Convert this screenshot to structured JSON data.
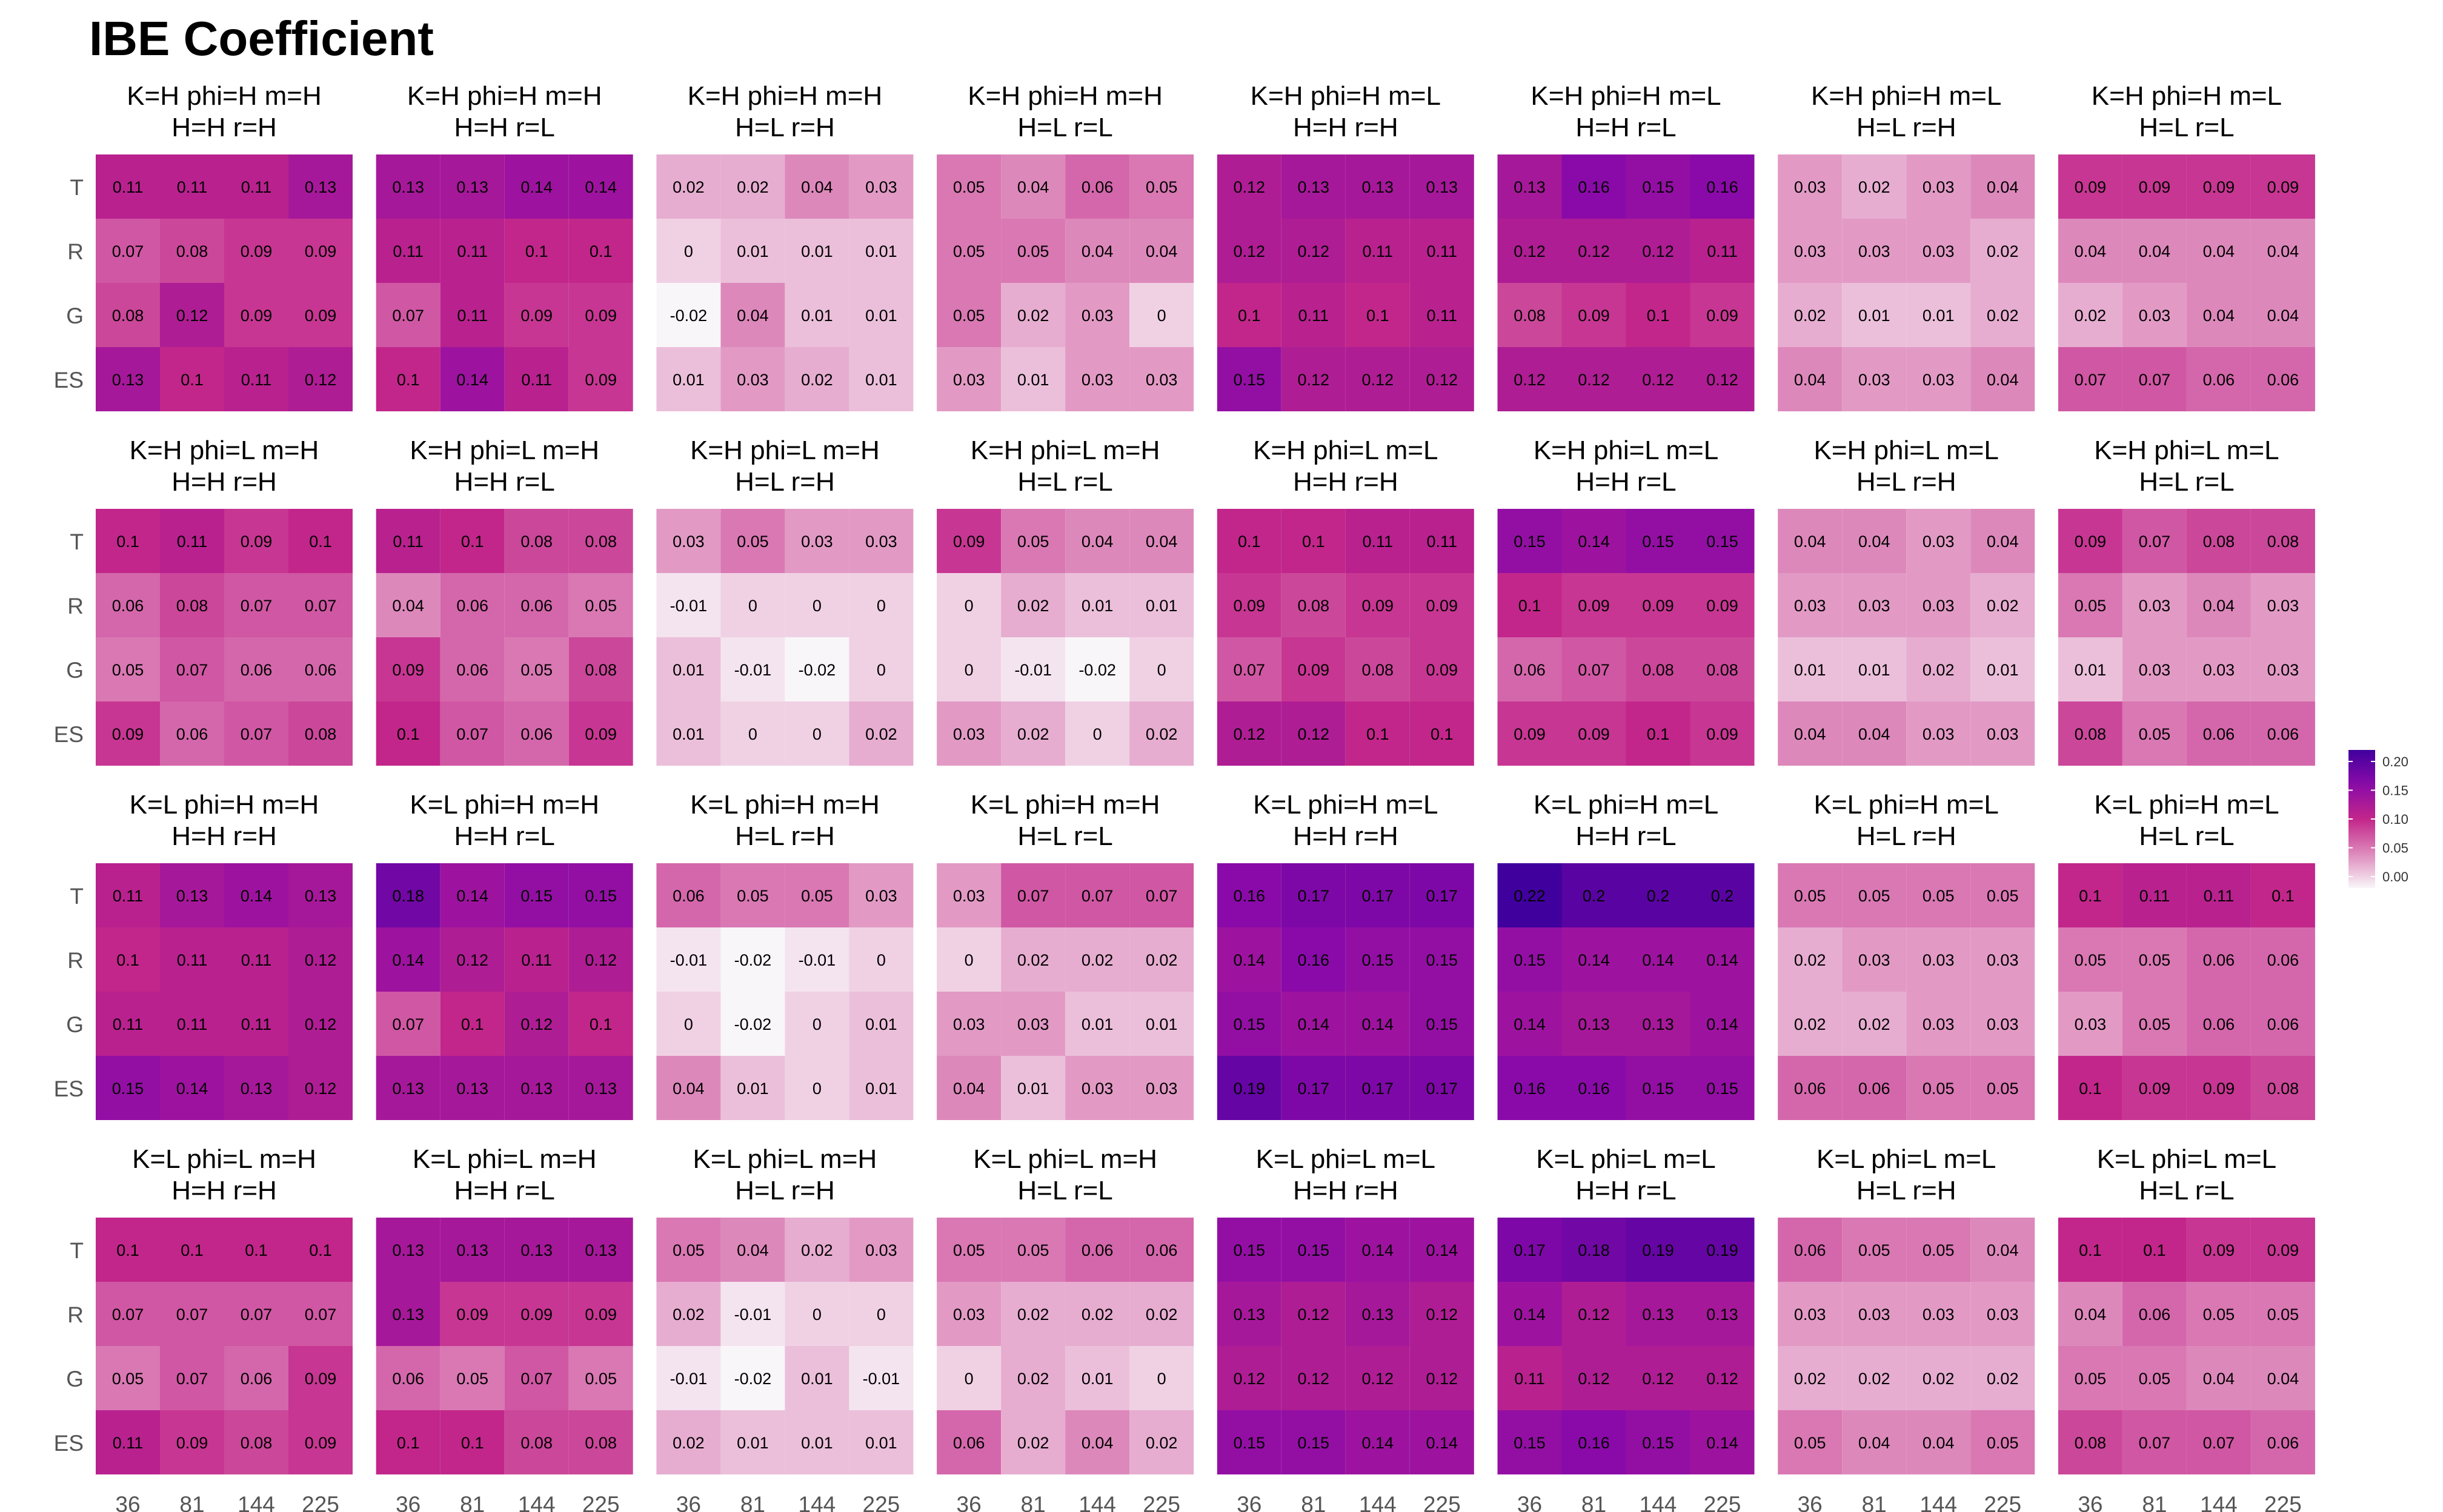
{
  "chart_data": {
    "type": "heatmap",
    "title": "IBE Coefficient",
    "x_categories": [
      "36",
      "81",
      "144",
      "225"
    ],
    "y_categories": [
      "T",
      "R",
      "G",
      "ES"
    ],
    "color_scale": {
      "colors": [
        "#f9f6f9",
        "#dd88bb",
        "#c2268a",
        "#8a0aa9",
        "#40009e"
      ],
      "ticks": [
        "0.20",
        "0.15",
        "0.10",
        "0.05",
        "0.00"
      ],
      "tick_values": [
        0.2,
        0.15,
        0.1,
        0.05,
        0.0
      ],
      "domain": [
        -0.02,
        0.22
      ]
    },
    "panels": [
      {
        "title1": "K=H phi=H m=H",
        "title2": "H=H r=H",
        "values": [
          [
            "0.11",
            "0.11",
            "0.11",
            "0.13"
          ],
          [
            "0.07",
            "0.08",
            "0.09",
            "0.09"
          ],
          [
            "0.08",
            "0.12",
            "0.09",
            "0.09"
          ],
          [
            "0.13",
            "0.1",
            "0.11",
            "0.12"
          ]
        ]
      },
      {
        "title1": "K=H phi=H m=H",
        "title2": "H=H r=L",
        "values": [
          [
            "0.13",
            "0.13",
            "0.14",
            "0.14"
          ],
          [
            "0.11",
            "0.11",
            "0.1",
            "0.1"
          ],
          [
            "0.07",
            "0.11",
            "0.09",
            "0.09"
          ],
          [
            "0.1",
            "0.14",
            "0.11",
            "0.09"
          ]
        ]
      },
      {
        "title1": "K=H phi=H m=H",
        "title2": "H=L r=H",
        "values": [
          [
            "0.02",
            "0.02",
            "0.04",
            "0.03"
          ],
          [
            "0",
            "0.01",
            "0.01",
            "0.01"
          ],
          [
            "-0.02",
            "0.04",
            "0.01",
            "0.01"
          ],
          [
            "0.01",
            "0.03",
            "0.02",
            "0.01"
          ]
        ]
      },
      {
        "title1": "K=H phi=H m=H",
        "title2": "H=L r=L",
        "values": [
          [
            "0.05",
            "0.04",
            "0.06",
            "0.05"
          ],
          [
            "0.05",
            "0.05",
            "0.04",
            "0.04"
          ],
          [
            "0.05",
            "0.02",
            "0.03",
            "0"
          ],
          [
            "0.03",
            "0.01",
            "0.03",
            "0.03"
          ]
        ]
      },
      {
        "title1": "K=H phi=H m=L",
        "title2": "H=H r=H",
        "values": [
          [
            "0.12",
            "0.13",
            "0.13",
            "0.13"
          ],
          [
            "0.12",
            "0.12",
            "0.11",
            "0.11"
          ],
          [
            "0.1",
            "0.11",
            "0.1",
            "0.11"
          ],
          [
            "0.15",
            "0.12",
            "0.12",
            "0.12"
          ]
        ]
      },
      {
        "title1": "K=H phi=H m=L",
        "title2": "H=H r=L",
        "values": [
          [
            "0.13",
            "0.16",
            "0.15",
            "0.16"
          ],
          [
            "0.12",
            "0.12",
            "0.12",
            "0.11"
          ],
          [
            "0.08",
            "0.09",
            "0.1",
            "0.09"
          ],
          [
            "0.12",
            "0.12",
            "0.12",
            "0.12"
          ]
        ]
      },
      {
        "title1": "K=H phi=H m=L",
        "title2": "H=L r=H",
        "values": [
          [
            "0.03",
            "0.02",
            "0.03",
            "0.04"
          ],
          [
            "0.03",
            "0.03",
            "0.03",
            "0.02"
          ],
          [
            "0.02",
            "0.01",
            "0.01",
            "0.02"
          ],
          [
            "0.04",
            "0.03",
            "0.03",
            "0.04"
          ]
        ]
      },
      {
        "title1": "K=H phi=H m=L",
        "title2": "H=L r=L",
        "values": [
          [
            "0.09",
            "0.09",
            "0.09",
            "0.09"
          ],
          [
            "0.04",
            "0.04",
            "0.04",
            "0.04"
          ],
          [
            "0.02",
            "0.03",
            "0.04",
            "0.04"
          ],
          [
            "0.07",
            "0.07",
            "0.06",
            "0.06"
          ]
        ]
      },
      {
        "title1": "K=H phi=L m=H",
        "title2": "H=H r=H",
        "values": [
          [
            "0.1",
            "0.11",
            "0.09",
            "0.1"
          ],
          [
            "0.06",
            "0.08",
            "0.07",
            "0.07"
          ],
          [
            "0.05",
            "0.07",
            "0.06",
            "0.06"
          ],
          [
            "0.09",
            "0.06",
            "0.07",
            "0.08"
          ]
        ]
      },
      {
        "title1": "K=H phi=L m=H",
        "title2": "H=H r=L",
        "values": [
          [
            "0.11",
            "0.1",
            "0.08",
            "0.08"
          ],
          [
            "0.04",
            "0.06",
            "0.06",
            "0.05"
          ],
          [
            "0.09",
            "0.06",
            "0.05",
            "0.08"
          ],
          [
            "0.1",
            "0.07",
            "0.06",
            "0.09"
          ]
        ]
      },
      {
        "title1": "K=H phi=L m=H",
        "title2": "H=L r=H",
        "values": [
          [
            "0.03",
            "0.05",
            "0.03",
            "0.03"
          ],
          [
            "-0.01",
            "0",
            "0",
            "0"
          ],
          [
            "0.01",
            "-0.01",
            "-0.02",
            "0"
          ],
          [
            "0.01",
            "0",
            "0",
            "0.02"
          ]
        ]
      },
      {
        "title1": "K=H phi=L m=H",
        "title2": "H=L r=L",
        "values": [
          [
            "0.09",
            "0.05",
            "0.04",
            "0.04"
          ],
          [
            "0",
            "0.02",
            "0.01",
            "0.01"
          ],
          [
            "0",
            "-0.01",
            "-0.02",
            "0"
          ],
          [
            "0.03",
            "0.02",
            "0",
            "0.02"
          ]
        ]
      },
      {
        "title1": "K=H phi=L m=L",
        "title2": "H=H r=H",
        "values": [
          [
            "0.1",
            "0.1",
            "0.11",
            "0.11"
          ],
          [
            "0.09",
            "0.08",
            "0.09",
            "0.09"
          ],
          [
            "0.07",
            "0.09",
            "0.08",
            "0.09"
          ],
          [
            "0.12",
            "0.12",
            "0.1",
            "0.1"
          ]
        ]
      },
      {
        "title1": "K=H phi=L m=L",
        "title2": "H=H r=L",
        "values": [
          [
            "0.15",
            "0.14",
            "0.15",
            "0.15"
          ],
          [
            "0.1",
            "0.09",
            "0.09",
            "0.09"
          ],
          [
            "0.06",
            "0.07",
            "0.08",
            "0.08"
          ],
          [
            "0.09",
            "0.09",
            "0.1",
            "0.09"
          ]
        ]
      },
      {
        "title1": "K=H phi=L m=L",
        "title2": "H=L r=H",
        "values": [
          [
            "0.04",
            "0.04",
            "0.03",
            "0.04"
          ],
          [
            "0.03",
            "0.03",
            "0.03",
            "0.02"
          ],
          [
            "0.01",
            "0.01",
            "0.02",
            "0.01"
          ],
          [
            "0.04",
            "0.04",
            "0.03",
            "0.03"
          ]
        ]
      },
      {
        "title1": "K=H phi=L m=L",
        "title2": "H=L r=L",
        "values": [
          [
            "0.09",
            "0.07",
            "0.08",
            "0.08"
          ],
          [
            "0.05",
            "0.03",
            "0.04",
            "0.03"
          ],
          [
            "0.01",
            "0.03",
            "0.03",
            "0.03"
          ],
          [
            "0.08",
            "0.05",
            "0.06",
            "0.06"
          ]
        ]
      },
      {
        "title1": "K=L phi=H m=H",
        "title2": "H=H r=H",
        "values": [
          [
            "0.11",
            "0.13",
            "0.14",
            "0.13"
          ],
          [
            "0.1",
            "0.11",
            "0.11",
            "0.12"
          ],
          [
            "0.11",
            "0.11",
            "0.11",
            "0.12"
          ],
          [
            "0.15",
            "0.14",
            "0.13",
            "0.12"
          ]
        ]
      },
      {
        "title1": "K=L phi=H m=H",
        "title2": "H=H r=L",
        "values": [
          [
            "0.18",
            "0.14",
            "0.15",
            "0.15"
          ],
          [
            "0.14",
            "0.12",
            "0.11",
            "0.12"
          ],
          [
            "0.07",
            "0.1",
            "0.12",
            "0.1"
          ],
          [
            "0.13",
            "0.13",
            "0.13",
            "0.13"
          ]
        ]
      },
      {
        "title1": "K=L phi=H m=H",
        "title2": "H=L r=H",
        "values": [
          [
            "0.06",
            "0.05",
            "0.05",
            "0.03"
          ],
          [
            "-0.01",
            "-0.02",
            "-0.01",
            "0"
          ],
          [
            "0",
            "-0.02",
            "0",
            "0.01"
          ],
          [
            "0.04",
            "0.01",
            "0",
            "0.01"
          ]
        ]
      },
      {
        "title1": "K=L phi=H m=H",
        "title2": "H=L r=L",
        "values": [
          [
            "0.03",
            "0.07",
            "0.07",
            "0.07"
          ],
          [
            "0",
            "0.02",
            "0.02",
            "0.02"
          ],
          [
            "0.03",
            "0.03",
            "0.01",
            "0.01"
          ],
          [
            "0.04",
            "0.01",
            "0.03",
            "0.03"
          ]
        ]
      },
      {
        "title1": "K=L phi=H m=L",
        "title2": "H=H r=H",
        "values": [
          [
            "0.16",
            "0.17",
            "0.17",
            "0.17"
          ],
          [
            "0.14",
            "0.16",
            "0.15",
            "0.15"
          ],
          [
            "0.15",
            "0.14",
            "0.14",
            "0.15"
          ],
          [
            "0.19",
            "0.17",
            "0.17",
            "0.17"
          ]
        ]
      },
      {
        "title1": "K=L phi=H m=L",
        "title2": "H=H r=L",
        "values": [
          [
            "0.22",
            "0.2",
            "0.2",
            "0.2"
          ],
          [
            "0.15",
            "0.14",
            "0.14",
            "0.14"
          ],
          [
            "0.14",
            "0.13",
            "0.13",
            "0.14"
          ],
          [
            "0.16",
            "0.16",
            "0.15",
            "0.15"
          ]
        ]
      },
      {
        "title1": "K=L phi=H m=L",
        "title2": "H=L r=H",
        "values": [
          [
            "0.05",
            "0.05",
            "0.05",
            "0.05"
          ],
          [
            "0.02",
            "0.03",
            "0.03",
            "0.03"
          ],
          [
            "0.02",
            "0.02",
            "0.03",
            "0.03"
          ],
          [
            "0.06",
            "0.06",
            "0.05",
            "0.05"
          ]
        ]
      },
      {
        "title1": "K=L phi=H m=L",
        "title2": "H=L r=L",
        "values": [
          [
            "0.1",
            "0.11",
            "0.11",
            "0.1"
          ],
          [
            "0.05",
            "0.05",
            "0.06",
            "0.06"
          ],
          [
            "0.03",
            "0.05",
            "0.06",
            "0.06"
          ],
          [
            "0.1",
            "0.09",
            "0.09",
            "0.08"
          ]
        ]
      },
      {
        "title1": "K=L phi=L m=H",
        "title2": "H=H r=H",
        "values": [
          [
            "0.1",
            "0.1",
            "0.1",
            "0.1"
          ],
          [
            "0.07",
            "0.07",
            "0.07",
            "0.07"
          ],
          [
            "0.05",
            "0.07",
            "0.06",
            "0.09"
          ],
          [
            "0.11",
            "0.09",
            "0.08",
            "0.09"
          ]
        ]
      },
      {
        "title1": "K=L phi=L m=H",
        "title2": "H=H r=L",
        "values": [
          [
            "0.13",
            "0.13",
            "0.13",
            "0.13"
          ],
          [
            "0.13",
            "0.09",
            "0.09",
            "0.09"
          ],
          [
            "0.06",
            "0.05",
            "0.07",
            "0.05"
          ],
          [
            "0.1",
            "0.1",
            "0.08",
            "0.08"
          ]
        ]
      },
      {
        "title1": "K=L phi=L m=H",
        "title2": "H=L r=H",
        "values": [
          [
            "0.05",
            "0.04",
            "0.02",
            "0.03"
          ],
          [
            "0.02",
            "-0.01",
            "0",
            "0"
          ],
          [
            "-0.01",
            "-0.02",
            "0.01",
            "-0.01"
          ],
          [
            "0.02",
            "0.01",
            "0.01",
            "0.01"
          ]
        ]
      },
      {
        "title1": "K=L phi=L m=H",
        "title2": "H=L r=L",
        "values": [
          [
            "0.05",
            "0.05",
            "0.06",
            "0.06"
          ],
          [
            "0.03",
            "0.02",
            "0.02",
            "0.02"
          ],
          [
            "0",
            "0.02",
            "0.01",
            "0"
          ],
          [
            "0.06",
            "0.02",
            "0.04",
            "0.02"
          ]
        ]
      },
      {
        "title1": "K=L phi=L m=L",
        "title2": "H=H r=H",
        "values": [
          [
            "0.15",
            "0.15",
            "0.14",
            "0.14"
          ],
          [
            "0.13",
            "0.12",
            "0.13",
            "0.12"
          ],
          [
            "0.12",
            "0.12",
            "0.12",
            "0.12"
          ],
          [
            "0.15",
            "0.15",
            "0.14",
            "0.14"
          ]
        ]
      },
      {
        "title1": "K=L phi=L m=L",
        "title2": "H=H r=L",
        "values": [
          [
            "0.17",
            "0.18",
            "0.19",
            "0.19"
          ],
          [
            "0.14",
            "0.12",
            "0.13",
            "0.13"
          ],
          [
            "0.11",
            "0.12",
            "0.12",
            "0.12"
          ],
          [
            "0.15",
            "0.16",
            "0.15",
            "0.14"
          ]
        ]
      },
      {
        "title1": "K=L phi=L m=L",
        "title2": "H=L r=H",
        "values": [
          [
            "0.06",
            "0.05",
            "0.05",
            "0.04"
          ],
          [
            "0.03",
            "0.03",
            "0.03",
            "0.03"
          ],
          [
            "0.02",
            "0.02",
            "0.02",
            "0.02"
          ],
          [
            "0.05",
            "0.04",
            "0.04",
            "0.05"
          ]
        ]
      },
      {
        "title1": "K=L phi=L m=L",
        "title2": "H=L r=L",
        "values": [
          [
            "0.1",
            "0.1",
            "0.09",
            "0.09"
          ],
          [
            "0.04",
            "0.06",
            "0.05",
            "0.05"
          ],
          [
            "0.05",
            "0.05",
            "0.04",
            "0.04"
          ],
          [
            "0.08",
            "0.07",
            "0.07",
            "0.06"
          ]
        ]
      }
    ]
  }
}
